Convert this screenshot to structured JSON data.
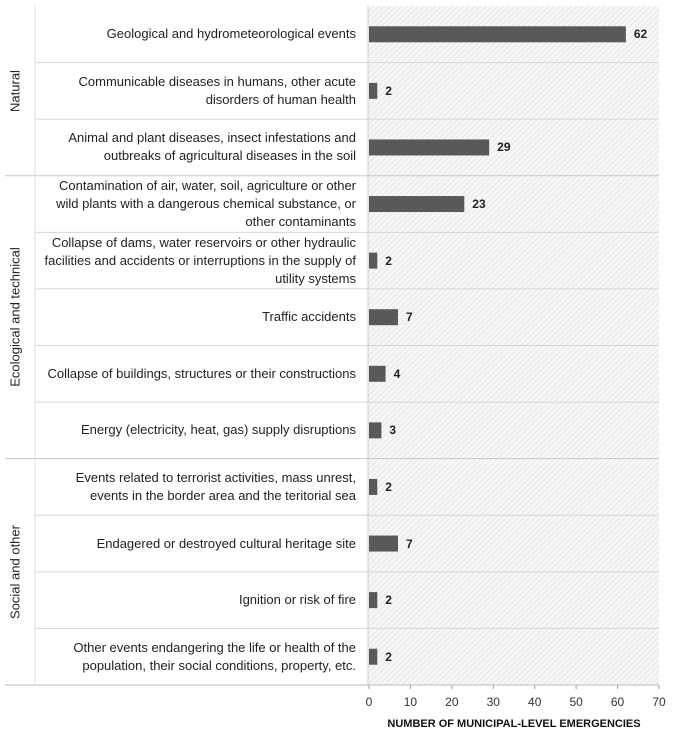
{
  "chart_data": {
    "type": "bar",
    "orientation": "horizontal",
    "color": "#595959",
    "x_label": "NUMBER OF MUNICIPAL-LEVEL EMERGENCIES",
    "xlim": [
      0,
      70
    ],
    "xticks": [
      0,
      10,
      20,
      30,
      40,
      50,
      60,
      70
    ],
    "groups": [
      {
        "name": "Natural",
        "categories": [
          "Geological and hydrometeorological events",
          "Communicable diseases in humans, other acute disorders of human health",
          "Animal and plant diseases, insect infestations and outbreaks of agricultural diseases in the soil"
        ],
        "values": [
          62,
          2,
          29
        ]
      },
      {
        "name": "Ecological and technical",
        "categories": [
          "Contamination of air, water, soil, agriculture or other wild plants with a dangerous chemical substance,  or other contaminants",
          "Collapse of dams, water reservoirs or other hydraulic facilities and accidents or interruptions in the supply of utility systems",
          "Traffic accidents",
          "Collapse of buildings, structures or their constructions",
          "Energy (electricity, heat, gas) supply disruptions"
        ],
        "values": [
          23,
          2,
          7,
          4,
          3
        ]
      },
      {
        "name": "Social and other",
        "categories": [
          "Events related to terrorist activities, mass unrest, events in the border area and the teritorial sea",
          "Endagered or destroyed cultural heritage site",
          "Ignition or risk of fire",
          "Other events endangering the life or health of the population, their social conditions, property, etc."
        ],
        "values": [
          2,
          7,
          2,
          2
        ]
      }
    ]
  }
}
